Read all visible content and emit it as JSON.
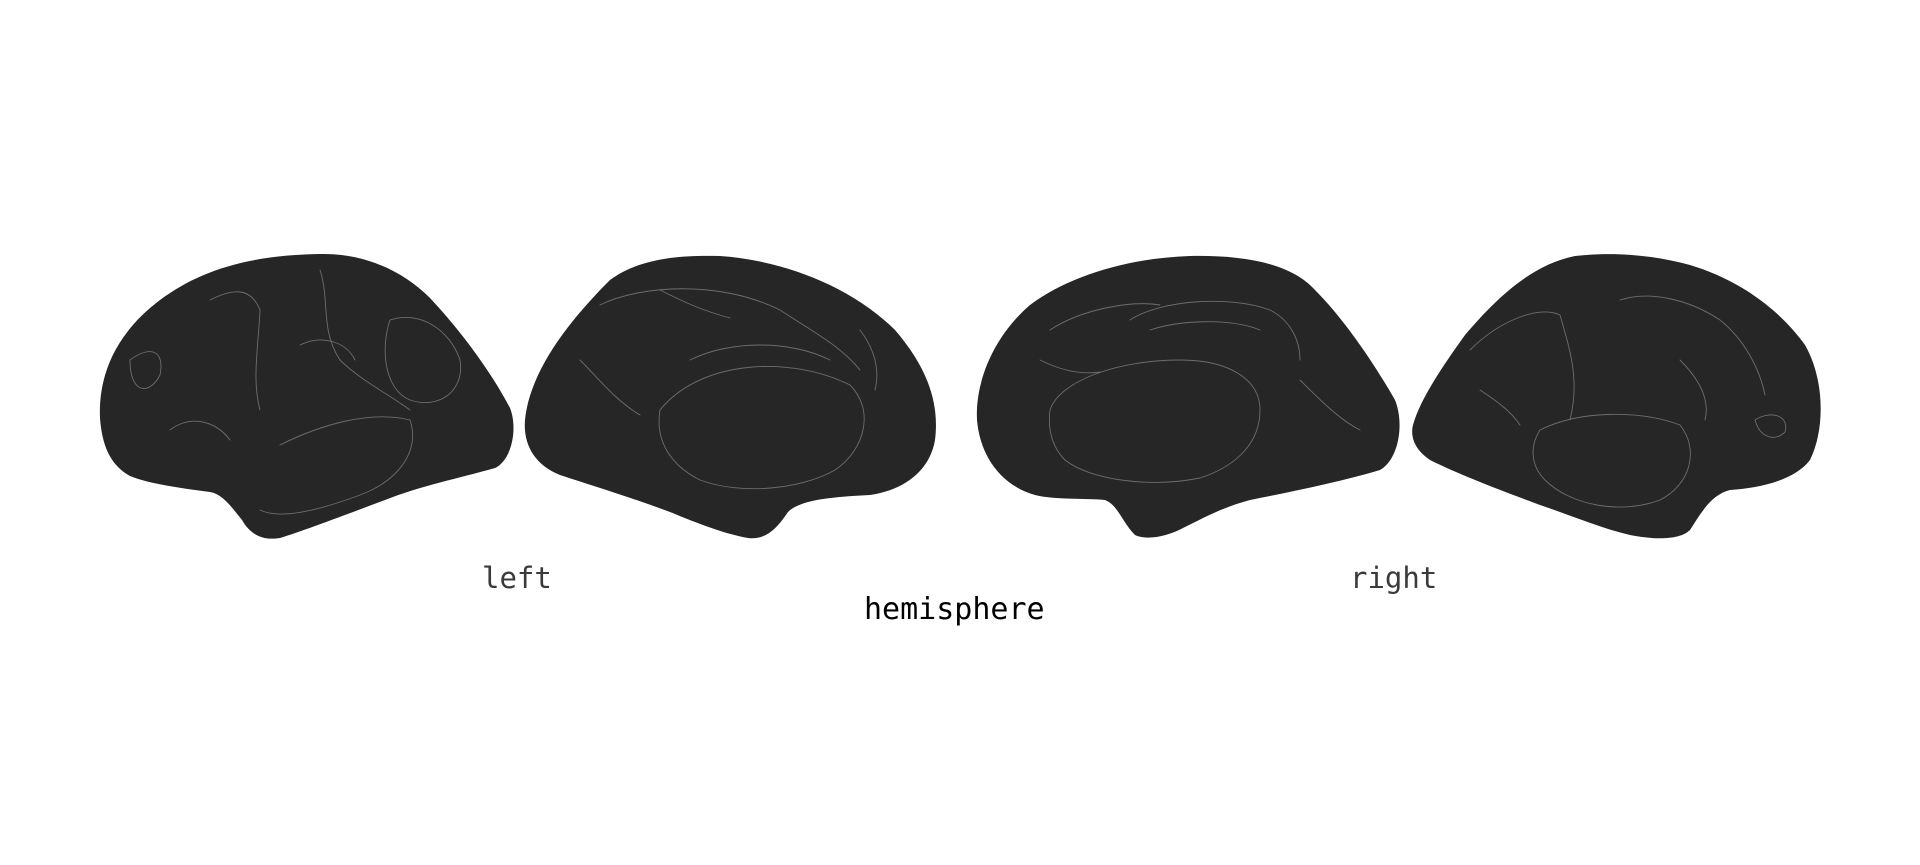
{
  "figure": {
    "views": [
      {
        "hemisphere": "left",
        "view": "lateral",
        "icon": "brain-lateral-left-icon"
      },
      {
        "hemisphere": "left",
        "view": "medial",
        "icon": "brain-medial-left-icon"
      },
      {
        "hemisphere": "right",
        "view": "medial",
        "icon": "brain-medial-right-icon"
      },
      {
        "hemisphere": "right",
        "view": "lateral",
        "icon": "brain-lateral-right-icon"
      }
    ],
    "fill_color": "#262626",
    "outline_color": "#7a7a7a",
    "labels": {
      "left": "left",
      "right": "right"
    },
    "axis_title": "hemisphere"
  }
}
